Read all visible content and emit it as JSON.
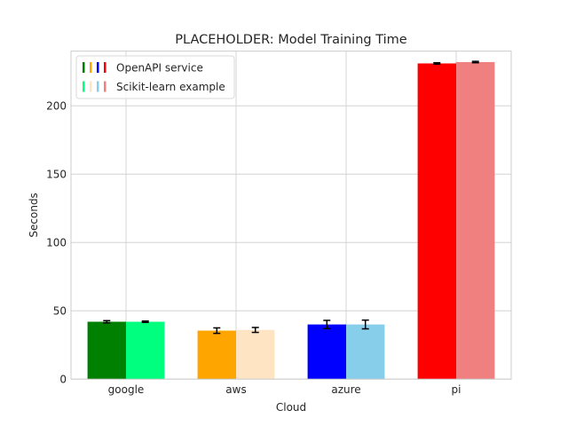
{
  "chart_data": {
    "type": "bar",
    "title": "PLACEHOLDER: Model Training Time",
    "xlabel": "Cloud",
    "ylabel": "Seconds",
    "categories": [
      "google",
      "aws",
      "azure",
      "pi"
    ],
    "ylim": [
      0,
      240
    ],
    "yticks": [
      0,
      50,
      100,
      150,
      200
    ],
    "grid": true,
    "legend_position": "top-left",
    "series": [
      {
        "name": "OpenAPI service",
        "values": [
          42,
          35.5,
          40,
          231
        ],
        "errors": [
          0.8,
          2.0,
          3.0,
          0.5
        ],
        "colors": [
          "#008000",
          "#ffa500",
          "#0000ff",
          "#ff0000"
        ]
      },
      {
        "name": "Scikit-learn example",
        "values": [
          42,
          36,
          40,
          232
        ],
        "errors": [
          0.5,
          1.8,
          3.2,
          0.5
        ],
        "colors": [
          "#00ff7f",
          "#ffe4c4",
          "#87ceeb",
          "#f08080"
        ]
      }
    ]
  }
}
